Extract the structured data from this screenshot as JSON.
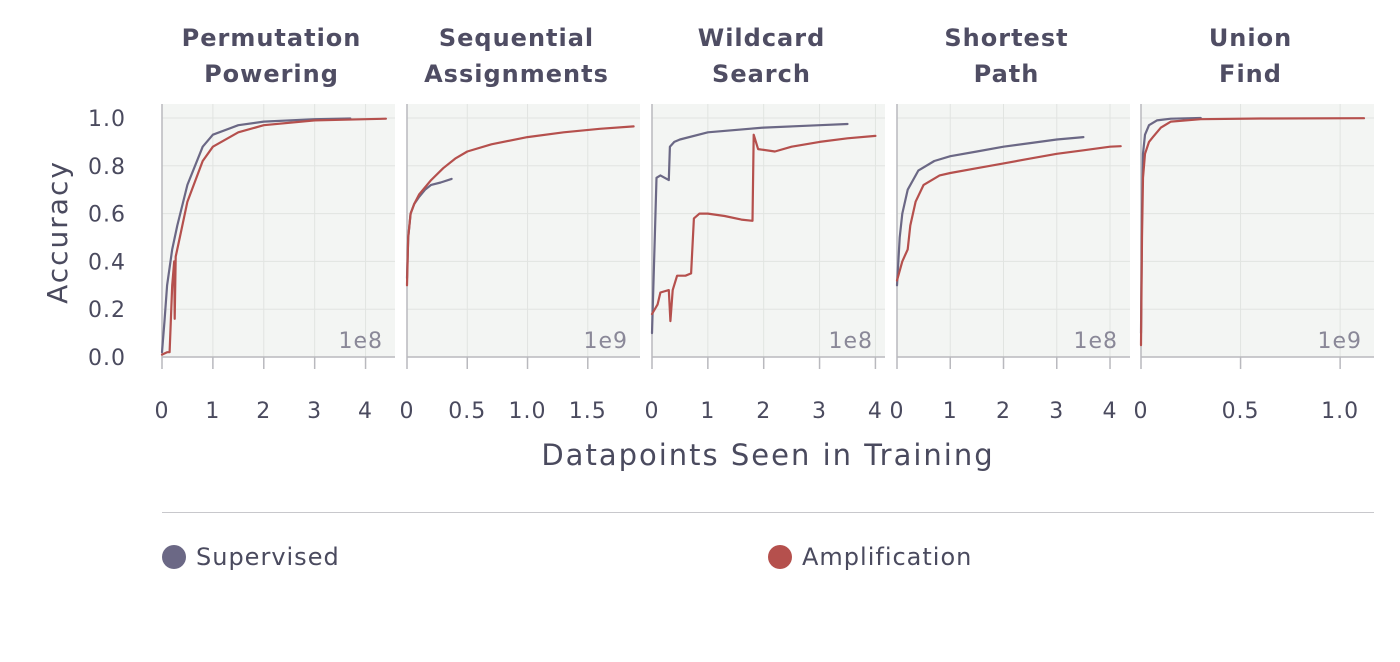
{
  "chart_data": {
    "type": "line",
    "ylabel": "Accuracy",
    "xlabel": "Datapoints Seen in Training",
    "ylim": [
      0,
      1.0
    ],
    "yticks": [
      "0.0",
      "0.2",
      "0.4",
      "0.6",
      "0.8",
      "1.0"
    ],
    "grid": true,
    "colors": {
      "Supervised": "#6b6885",
      "Amplification": "#b5504d"
    },
    "legend": {
      "placement": "bottom",
      "entries": [
        "Supervised",
        "Amplification"
      ]
    },
    "panels": [
      {
        "title": [
          "Permutation",
          "Powering"
        ],
        "offset_label": "1e8",
        "xlim": [
          0,
          4.5
        ],
        "xticks": [
          0,
          1,
          2,
          3,
          4
        ],
        "xtick_labels": [
          "0",
          "1",
          "2",
          "3",
          "4"
        ],
        "series": [
          {
            "name": "Supervised",
            "points": [
              [
                0,
                0.02
              ],
              [
                0.05,
                0.15
              ],
              [
                0.1,
                0.3
              ],
              [
                0.2,
                0.45
              ],
              [
                0.3,
                0.55
              ],
              [
                0.5,
                0.72
              ],
              [
                0.8,
                0.88
              ],
              [
                1.0,
                0.93
              ],
              [
                1.5,
                0.97
              ],
              [
                2.0,
                0.985
              ],
              [
                3.0,
                0.995
              ],
              [
                3.7,
                0.998
              ]
            ]
          },
          {
            "name": "Amplification",
            "points": [
              [
                0,
                0.01
              ],
              [
                0.1,
                0.02
              ],
              [
                0.15,
                0.02
              ],
              [
                0.2,
                0.3
              ],
              [
                0.24,
                0.4
              ],
              [
                0.25,
                0.16
              ],
              [
                0.27,
                0.42
              ],
              [
                0.35,
                0.5
              ],
              [
                0.5,
                0.65
              ],
              [
                0.8,
                0.82
              ],
              [
                1.0,
                0.88
              ],
              [
                1.5,
                0.94
              ],
              [
                2.0,
                0.97
              ],
              [
                3.0,
                0.99
              ],
              [
                4.0,
                0.995
              ],
              [
                4.4,
                0.997
              ]
            ]
          }
        ]
      },
      {
        "title": [
          "Sequential",
          "Assignments"
        ],
        "offset_label": "1e9",
        "xlim": [
          0,
          1.9
        ],
        "xticks": [
          0,
          0.5,
          1.0,
          1.5
        ],
        "xtick_labels": [
          "0",
          "0.5",
          "1.0",
          "1.5"
        ],
        "series": [
          {
            "name": "Supervised",
            "points": [
              [
                0,
                0.33
              ],
              [
                0.01,
                0.5
              ],
              [
                0.03,
                0.6
              ],
              [
                0.06,
                0.64
              ],
              [
                0.1,
                0.67
              ],
              [
                0.15,
                0.7
              ],
              [
                0.2,
                0.72
              ],
              [
                0.28,
                0.73
              ],
              [
                0.37,
                0.745
              ]
            ]
          },
          {
            "name": "Amplification",
            "points": [
              [
                0,
                0.3
              ],
              [
                0.01,
                0.5
              ],
              [
                0.03,
                0.6
              ],
              [
                0.06,
                0.64
              ],
              [
                0.1,
                0.68
              ],
              [
                0.2,
                0.74
              ],
              [
                0.3,
                0.79
              ],
              [
                0.4,
                0.83
              ],
              [
                0.5,
                0.86
              ],
              [
                0.7,
                0.89
              ],
              [
                1.0,
                0.92
              ],
              [
                1.3,
                0.94
              ],
              [
                1.6,
                0.955
              ],
              [
                1.88,
                0.965
              ]
            ]
          }
        ]
      },
      {
        "title": [
          "Wildcard",
          "Search"
        ],
        "offset_label": "1e8",
        "xlim": [
          0,
          4.1
        ],
        "xticks": [
          0,
          1,
          2,
          3,
          4
        ],
        "xtick_labels": [
          "0",
          "1",
          "2",
          "3",
          "4"
        ],
        "series": [
          {
            "name": "Supervised",
            "points": [
              [
                0,
                0.1
              ],
              [
                0.05,
                0.5
              ],
              [
                0.08,
                0.75
              ],
              [
                0.15,
                0.76
              ],
              [
                0.3,
                0.74
              ],
              [
                0.32,
                0.88
              ],
              [
                0.4,
                0.9
              ],
              [
                0.5,
                0.91
              ],
              [
                1.0,
                0.94
              ],
              [
                2.0,
                0.96
              ],
              [
                3.0,
                0.97
              ],
              [
                3.5,
                0.975
              ]
            ]
          },
          {
            "name": "Amplification",
            "points": [
              [
                0,
                0.18
              ],
              [
                0.1,
                0.22
              ],
              [
                0.15,
                0.27
              ],
              [
                0.3,
                0.28
              ],
              [
                0.33,
                0.15
              ],
              [
                0.37,
                0.28
              ],
              [
                0.45,
                0.34
              ],
              [
                0.6,
                0.34
              ],
              [
                0.7,
                0.35
              ],
              [
                0.75,
                0.58
              ],
              [
                0.85,
                0.6
              ],
              [
                1.0,
                0.6
              ],
              [
                1.3,
                0.59
              ],
              [
                1.6,
                0.575
              ],
              [
                1.8,
                0.57
              ],
              [
                1.82,
                0.93
              ],
              [
                1.9,
                0.87
              ],
              [
                2.2,
                0.86
              ],
              [
                2.5,
                0.88
              ],
              [
                3.0,
                0.9
              ],
              [
                3.5,
                0.915
              ],
              [
                4.0,
                0.925
              ]
            ]
          }
        ]
      },
      {
        "title": [
          "Shortest",
          "Path"
        ],
        "offset_label": "1e8",
        "xlim": [
          0,
          4.3
        ],
        "xticks": [
          0,
          1,
          2,
          3,
          4
        ],
        "xtick_labels": [
          "0",
          "1",
          "2",
          "3",
          "4"
        ],
        "series": [
          {
            "name": "Supervised",
            "points": [
              [
                0,
                0.3
              ],
              [
                0.05,
                0.5
              ],
              [
                0.1,
                0.6
              ],
              [
                0.2,
                0.7
              ],
              [
                0.4,
                0.78
              ],
              [
                0.7,
                0.82
              ],
              [
                1.0,
                0.84
              ],
              [
                1.5,
                0.86
              ],
              [
                2.0,
                0.88
              ],
              [
                2.5,
                0.895
              ],
              [
                3.0,
                0.91
              ],
              [
                3.5,
                0.92
              ]
            ]
          },
          {
            "name": "Amplification",
            "points": [
              [
                0,
                0.32
              ],
              [
                0.1,
                0.4
              ],
              [
                0.2,
                0.45
              ],
              [
                0.25,
                0.55
              ],
              [
                0.35,
                0.65
              ],
              [
                0.5,
                0.72
              ],
              [
                0.8,
                0.76
              ],
              [
                1.0,
                0.77
              ],
              [
                1.5,
                0.79
              ],
              [
                2.0,
                0.81
              ],
              [
                2.5,
                0.83
              ],
              [
                3.0,
                0.85
              ],
              [
                3.5,
                0.865
              ],
              [
                4.0,
                0.88
              ],
              [
                4.2,
                0.882
              ]
            ]
          }
        ]
      },
      {
        "title": [
          "Union",
          "Find"
        ],
        "offset_label": "1e9",
        "xlim": [
          0,
          1.15
        ],
        "xticks": [
          0,
          0.5,
          1.0
        ],
        "xtick_labels": [
          "0",
          "0.5",
          "1.0"
        ],
        "series": [
          {
            "name": "Supervised",
            "points": [
              [
                0,
                0.1
              ],
              [
                0.005,
                0.6
              ],
              [
                0.01,
                0.85
              ],
              [
                0.02,
                0.93
              ],
              [
                0.04,
                0.97
              ],
              [
                0.08,
                0.99
              ],
              [
                0.15,
                0.997
              ],
              [
                0.3,
                1.0
              ]
            ]
          },
          {
            "name": "Amplification",
            "points": [
              [
                0,
                0.05
              ],
              [
                0.005,
                0.5
              ],
              [
                0.01,
                0.75
              ],
              [
                0.02,
                0.85
              ],
              [
                0.04,
                0.9
              ],
              [
                0.06,
                0.92
              ],
              [
                0.1,
                0.96
              ],
              [
                0.15,
                0.985
              ],
              [
                0.3,
                0.995
              ],
              [
                0.6,
                0.998
              ],
              [
                1.12,
                0.999
              ]
            ]
          }
        ]
      }
    ]
  },
  "legend_items": {
    "supervised": {
      "label": "Supervised",
      "color": "#6b6885"
    },
    "amplification": {
      "label": "Amplification",
      "color": "#b5504d"
    }
  }
}
